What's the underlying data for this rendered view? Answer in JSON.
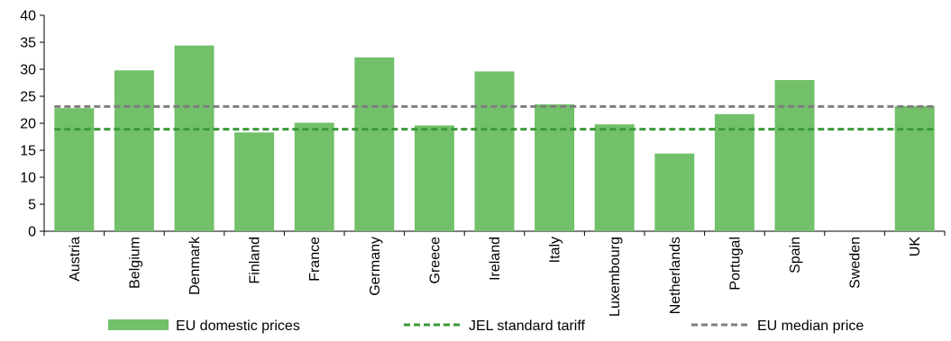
{
  "chart_data": {
    "type": "bar",
    "categories": [
      "Austria",
      "Belgium",
      "Denmark",
      "Finland",
      "France",
      "Germany",
      "Greece",
      "Ireland",
      "Italy",
      "Luxembourg",
      "Netherlands",
      "Portugal",
      "Spain",
      "Sweden",
      "UK"
    ],
    "series": [
      {
        "name": "EU domestic prices",
        "kind": "bar",
        "values": [
          22.8,
          29.8,
          34.4,
          18.3,
          20.1,
          32.2,
          19.6,
          29.6,
          23.5,
          19.8,
          14.4,
          21.7,
          28.0,
          null,
          23.2
        ]
      },
      {
        "name": "JEL standard tariff",
        "kind": "line",
        "style": "dashed",
        "value": 18.9
      },
      {
        "name": "EU median price",
        "kind": "line",
        "style": "dashed",
        "value": 23.1
      }
    ],
    "yticks": [
      0,
      5,
      10,
      15,
      20,
      25,
      30,
      35,
      40
    ],
    "ylim": [
      0,
      40
    ],
    "title": "",
    "xlabel": "",
    "ylabel": "",
    "grid": false,
    "legend_position": "bottom",
    "colors": {
      "bar": "#72c06a",
      "jel_line": "#3a9a3a",
      "median_line": "#7f7f7f",
      "axis": "#000000"
    }
  }
}
